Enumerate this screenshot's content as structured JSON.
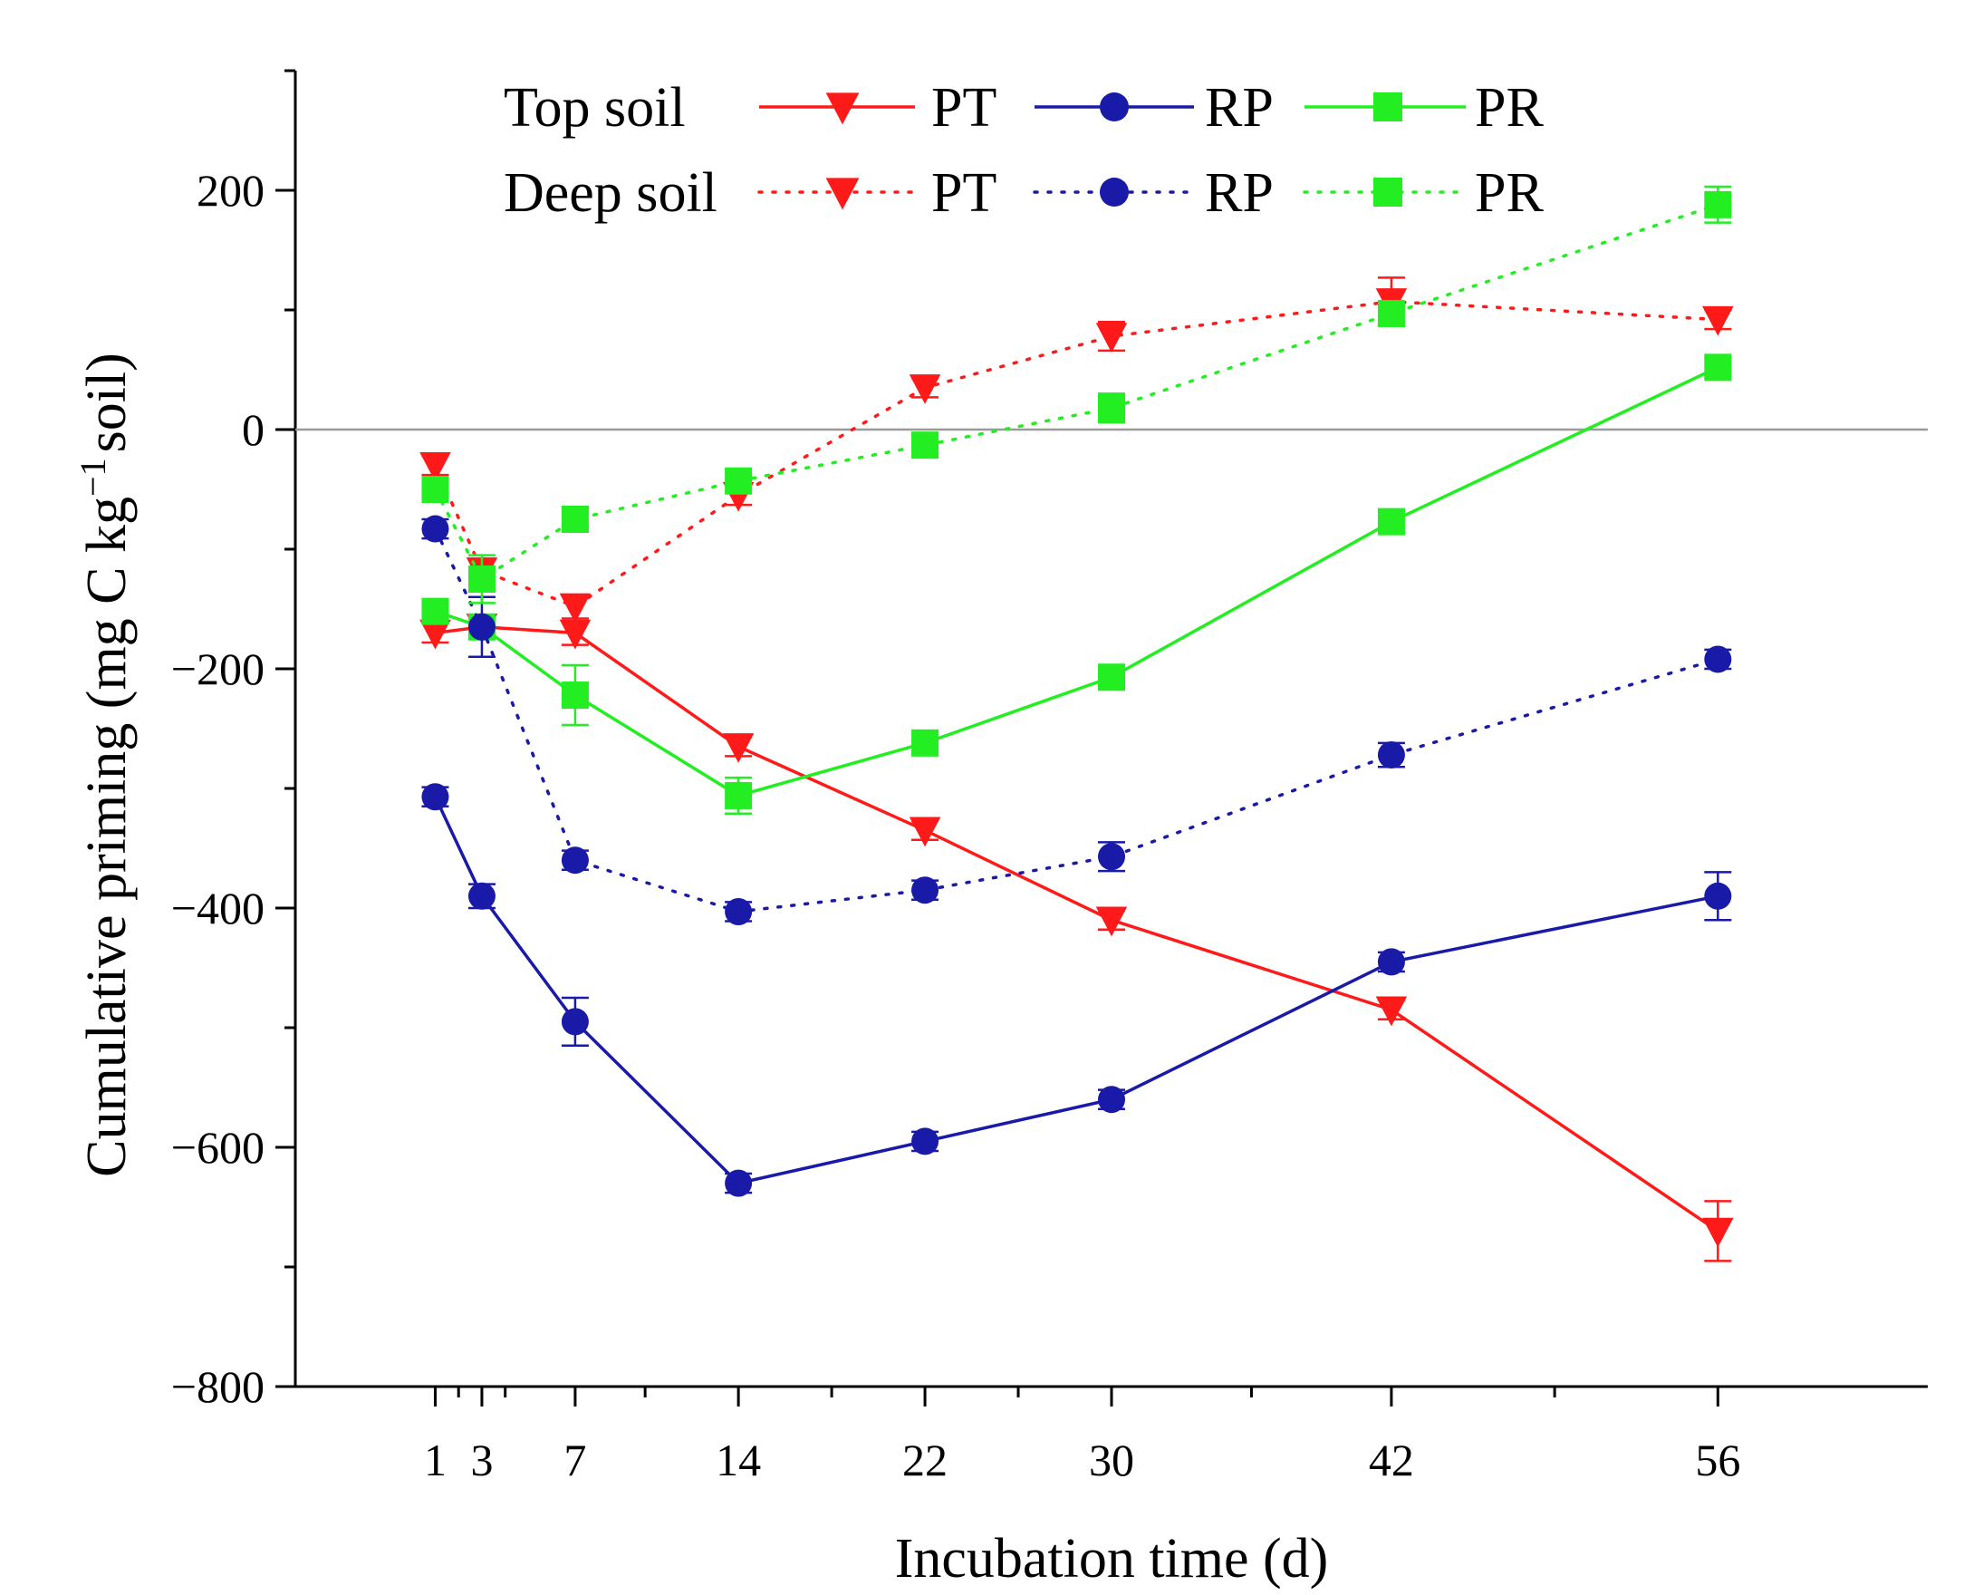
{
  "chart_data": {
    "type": "line",
    "xlabel": "Incubation time (d)",
    "ylabel_parts": [
      "Cumulative priming (mg C kg",
      "−1",
      "soil)"
    ],
    "xlim": [
      -5,
      65
    ],
    "ylim": [
      -800,
      300
    ],
    "x_ticks": [
      1,
      3,
      7,
      14,
      22,
      30,
      42,
      56
    ],
    "x_minor_ticks": [
      2,
      4,
      10,
      18,
      26,
      36,
      49
    ],
    "y_ticks": [
      -800,
      -600,
      -400,
      -200,
      0,
      200
    ],
    "y_minor_ticks": [
      -700,
      -500,
      -300,
      -100,
      100,
      300
    ],
    "reference_line": 0,
    "legend": {
      "rows": [
        {
          "label": "Top soil",
          "series": [
            "PT",
            "RP",
            "PR"
          ],
          "style": "solid"
        },
        {
          "label": "Deep soil",
          "series": [
            "PT",
            "RP",
            "PR"
          ],
          "style": "dotted"
        }
      ],
      "placement": "top-center"
    },
    "series": [
      {
        "name": "PT",
        "group": "Top soil",
        "style": "solid",
        "marker": "triangle-down",
        "color": "#ff1a1a",
        "x": [
          1,
          3,
          7,
          14,
          22,
          30,
          42,
          56
        ],
        "values": [
          -170,
          -165,
          -170,
          -265,
          -335,
          -410,
          -485,
          -670
        ],
        "errors": [
          8,
          10,
          10,
          8,
          8,
          8,
          8,
          25
        ]
      },
      {
        "name": "RP",
        "group": "Top soil",
        "style": "solid",
        "marker": "circle",
        "color": "#1a1aa8",
        "x": [
          1,
          3,
          7,
          14,
          22,
          30,
          42,
          56
        ],
        "values": [
          -307,
          -390,
          -495,
          -630,
          -595,
          -560,
          -445,
          -390
        ],
        "errors": [
          8,
          10,
          20,
          8,
          8,
          8,
          8,
          20
        ]
      },
      {
        "name": "PR",
        "group": "Top soil",
        "style": "solid",
        "marker": "square",
        "color": "#22ee22",
        "x": [
          1,
          3,
          7,
          14,
          22,
          30,
          42,
          56
        ],
        "values": [
          -152,
          -165,
          -222,
          -306,
          -262,
          -207,
          -77,
          52
        ],
        "errors": [
          8,
          10,
          25,
          15,
          8,
          8,
          10,
          8
        ]
      },
      {
        "name": "PT",
        "group": "Deep soil",
        "style": "dotted",
        "marker": "triangle-down",
        "color": "#ff1a1a",
        "x": [
          1,
          3,
          7,
          14,
          22,
          30,
          42,
          56
        ],
        "values": [
          -30,
          -118,
          -148,
          -55,
          35,
          78,
          107,
          92
        ],
        "errors": [
          8,
          10,
          10,
          8,
          8,
          12,
          20,
          8
        ]
      },
      {
        "name": "RP",
        "group": "Deep soil",
        "style": "dotted",
        "marker": "circle",
        "color": "#1a1aa8",
        "x": [
          1,
          3,
          7,
          14,
          22,
          30,
          42,
          56
        ],
        "values": [
          -83,
          -165,
          -360,
          -403,
          -385,
          -357,
          -272,
          -192
        ],
        "errors": [
          8,
          25,
          8,
          8,
          8,
          12,
          10,
          8
        ]
      },
      {
        "name": "PR",
        "group": "Deep soil",
        "style": "dotted",
        "marker": "square",
        "color": "#22ee22",
        "x": [
          1,
          3,
          7,
          14,
          22,
          30,
          42,
          56
        ],
        "values": [
          -50,
          -125,
          -75,
          -43,
          -13,
          18,
          97,
          188
        ],
        "errors": [
          8,
          20,
          8,
          8,
          8,
          12,
          10,
          15
        ]
      }
    ]
  }
}
